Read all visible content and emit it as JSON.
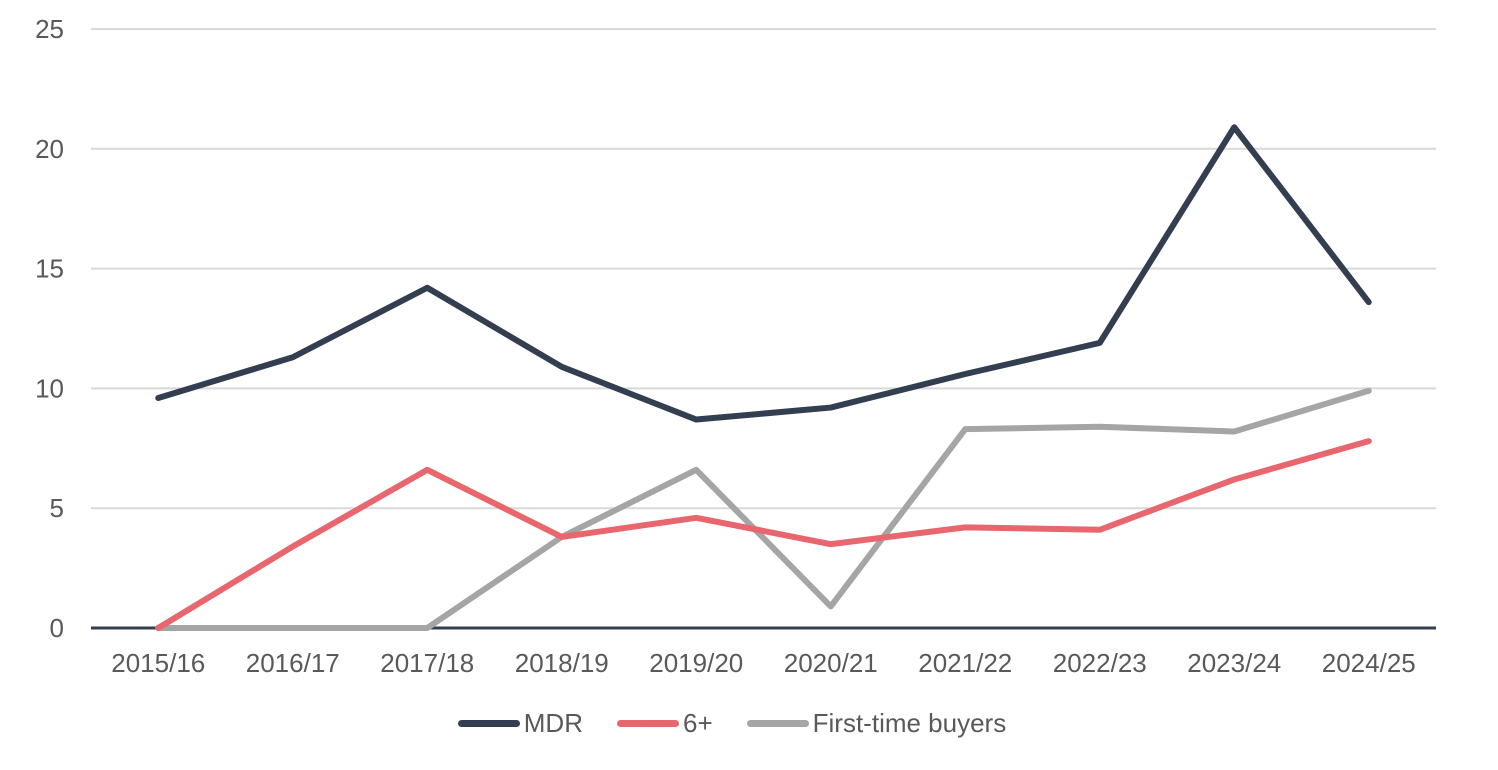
{
  "chart_data": {
    "type": "line",
    "title": "",
    "xlabel": "",
    "ylabel": "",
    "ylim": [
      0,
      25
    ],
    "yticks": [
      0,
      5,
      10,
      15,
      20,
      25
    ],
    "grid": true,
    "legend_position": "bottom",
    "categories": [
      "2015/16",
      "2016/17",
      "2017/18",
      "2018/19",
      "2019/20",
      "2020/21",
      "2021/22",
      "2022/23",
      "2023/24",
      "2024/25"
    ],
    "series": [
      {
        "name": "MDR",
        "color": "#333F50",
        "values": [
          9.6,
          11.3,
          14.2,
          10.9,
          8.7,
          9.2,
          10.6,
          11.9,
          20.9,
          13.6
        ]
      },
      {
        "name": "6+",
        "color": "#E8666E",
        "values": [
          0,
          3.4,
          6.6,
          3.8,
          4.6,
          3.5,
          4.2,
          4.1,
          6.2,
          7.8
        ]
      },
      {
        "name": "First-time buyers",
        "color": "#A5A5A5",
        "values": [
          0,
          0,
          0,
          3.8,
          6.6,
          0.9,
          8.3,
          8.4,
          8.2,
          9.9
        ]
      }
    ]
  },
  "legend": {
    "items": [
      {
        "label": "MDR",
        "color": "#333F50"
      },
      {
        "label": "6+",
        "color": "#E8666E"
      },
      {
        "label": "First-time buyers",
        "color": "#A5A5A5"
      }
    ]
  }
}
